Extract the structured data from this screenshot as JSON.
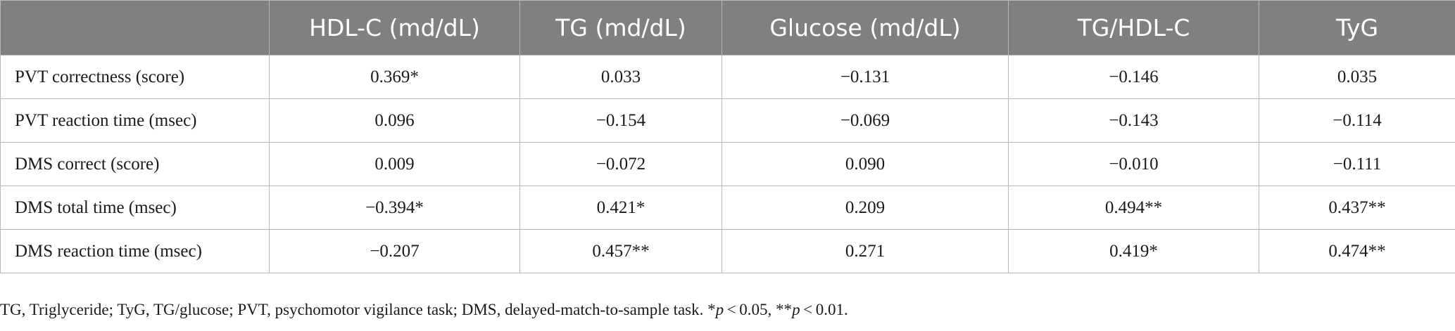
{
  "table": {
    "headers": [
      "",
      "HDL-C (md/dL)",
      "TG (md/dL)",
      "Glucose (md/dL)",
      "TG/HDL-C",
      "TyG"
    ],
    "rows": [
      {
        "label": "PVT correctness (score)",
        "cells": [
          "0.369*",
          "0.033",
          "−0.131",
          "−0.146",
          "0.035"
        ]
      },
      {
        "label": "PVT reaction time (msec)",
        "cells": [
          "0.096",
          "−0.154",
          "−0.069",
          "−0.143",
          "−0.114"
        ]
      },
      {
        "label": "DMS correct (score)",
        "cells": [
          "0.009",
          "−0.072",
          "0.090",
          "−0.010",
          "−0.111"
        ]
      },
      {
        "label": "DMS total time (msec)",
        "cells": [
          "−0.394*",
          "0.421*",
          "0.209",
          "0.494**",
          "0.437**"
        ]
      },
      {
        "label": "DMS reaction time (msec)",
        "cells": [
          "−0.207",
          "0.457**",
          "0.271",
          "0.419*",
          "0.474**"
        ]
      }
    ]
  },
  "footnote": {
    "text_main": "TG, Triglyceride; TyG, TG/glucose; PVT, psychomotor vigilance task; DMS, delayed-match-to-sample task. *",
    "p1": "p",
    "mid": " < 0.05, **",
    "p2": "p",
    "end": " < 0.01."
  },
  "colors": {
    "header_bg": "#808080",
    "header_text": "#ffffff",
    "border": "#b7b7b7"
  }
}
